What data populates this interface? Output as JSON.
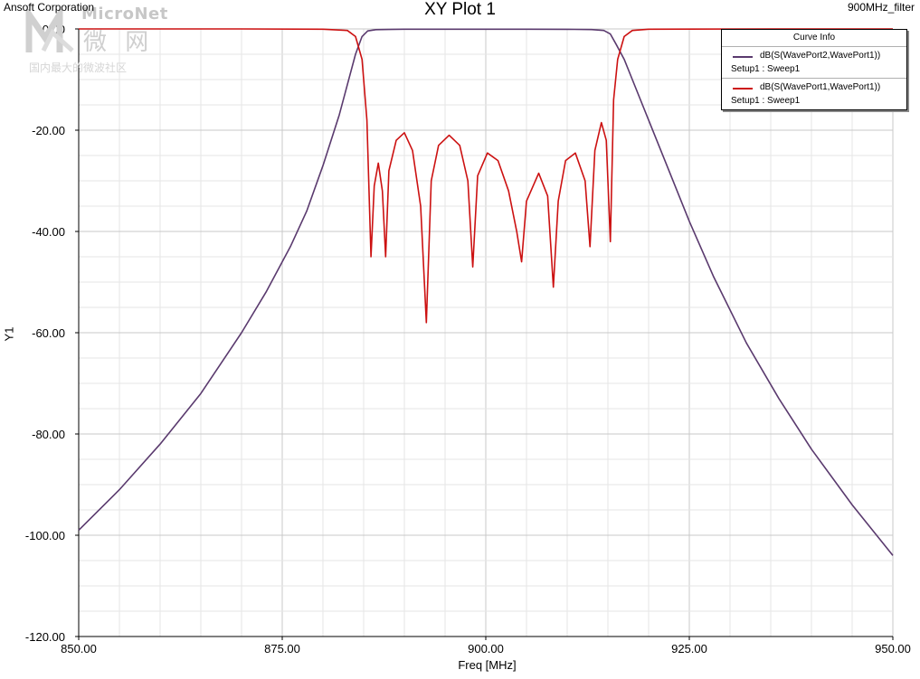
{
  "header": {
    "company": "Ansoft Corporation",
    "title": "XY Plot 1",
    "project": "900MHz_filter"
  },
  "watermark": {
    "name": "MicroNet",
    "chinese": "微 网",
    "subtitle": "国内最大的微波社区"
  },
  "legend": {
    "title": "Curve Info",
    "entries": [
      {
        "name": "dB(S(WavePort2,WavePort1))",
        "setup": "Setup1 : Sweep1",
        "color": "#5a3a6e"
      },
      {
        "name": "dB(S(WavePort1,WavePort1))",
        "setup": "Setup1 : Sweep1",
        "color": "#cc1111"
      }
    ]
  },
  "chart_data": {
    "type": "line",
    "title": "XY Plot 1",
    "xlabel": "Freq [MHz]",
    "ylabel": "Y1",
    "xlim": [
      850,
      950
    ],
    "ylim": [
      -120,
      0
    ],
    "xticks": [
      "850.00",
      "875.00",
      "900.00",
      "925.00",
      "950.00"
    ],
    "xtick_values": [
      850,
      875,
      900,
      925,
      950
    ],
    "yticks": [
      "0.00",
      "-20.00",
      "-40.00",
      "-60.00",
      "-80.00",
      "-100.00",
      "-120.00"
    ],
    "ytick_values": [
      0,
      -20,
      -40,
      -60,
      -80,
      -100,
      -120
    ],
    "grid": true,
    "legend_position": "top-right",
    "series": [
      {
        "name": "dB(S(WavePort2,WavePort1))",
        "color": "#5a3a6e",
        "x": [
          850,
          855,
          860,
          865,
          870,
          873,
          876,
          878,
          880,
          882,
          883,
          884,
          884.8,
          885.5,
          886.5,
          888,
          890,
          895,
          900,
          905,
          910,
          913,
          914.5,
          915.3,
          916,
          917,
          918,
          920,
          922,
          925,
          928,
          932,
          936,
          940,
          945,
          950
        ],
        "y": [
          -99,
          -91,
          -82,
          -72,
          -60,
          -52,
          -43,
          -36,
          -27,
          -17,
          -11,
          -5,
          -1.5,
          -0.4,
          -0.15,
          -0.1,
          -0.05,
          -0.05,
          -0.05,
          -0.05,
          -0.08,
          -0.12,
          -0.3,
          -1,
          -3,
          -6,
          -10,
          -18,
          -26,
          -38,
          -49,
          -62,
          -73,
          -83,
          -94,
          -104
        ]
      },
      {
        "name": "dB(S(WavePort1,WavePort1))",
        "color": "#cc1111",
        "x": [
          850,
          870,
          880,
          883,
          884,
          884.8,
          885.4,
          885.9,
          886.3,
          886.8,
          887.3,
          887.7,
          888.1,
          889,
          890,
          891,
          892,
          892.7,
          893.3,
          894.2,
          895.5,
          896.8,
          897.8,
          898.4,
          899,
          900.2,
          901.5,
          902.8,
          903.8,
          904.4,
          905,
          906.5,
          907.6,
          908.3,
          908.9,
          909.8,
          911,
          912.2,
          912.8,
          913.4,
          914.2,
          914.8,
          915.3,
          915.7,
          916.2,
          917,
          918,
          920,
          935,
          950
        ],
        "y": [
          0,
          0,
          -0.05,
          -0.3,
          -1.5,
          -6,
          -18,
          -45,
          -31,
          -26.5,
          -32,
          -45,
          -28,
          -22,
          -20.5,
          -24,
          -35,
          -58,
          -30,
          -23,
          -21,
          -23,
          -30,
          -47,
          -29,
          -24.5,
          -26,
          -32,
          -40,
          -46,
          -34,
          -28.5,
          -33,
          -51,
          -34,
          -26,
          -24.5,
          -30,
          -43,
          -24,
          -18.5,
          -22,
          -42,
          -14,
          -6,
          -1.5,
          -0.3,
          -0.05,
          0,
          0
        ]
      }
    ]
  }
}
